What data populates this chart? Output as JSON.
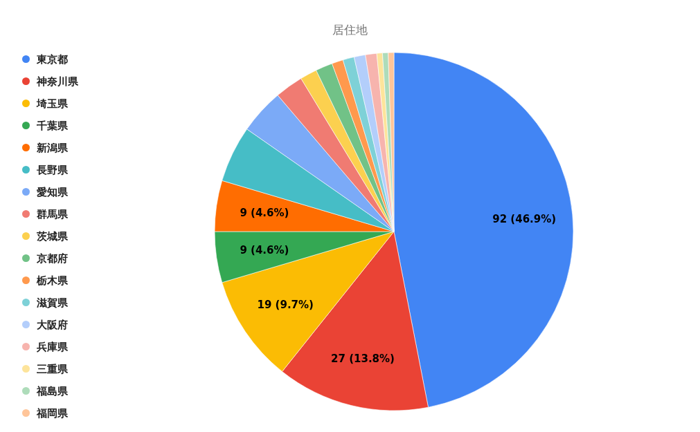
{
  "chart_data": {
    "type": "pie",
    "title": "居住地",
    "categories": [
      "東京都",
      "神奈川県",
      "埼玉県",
      "千葉県",
      "新潟県",
      "長野県",
      "愛知県",
      "群馬県",
      "茨城県",
      "京都府",
      "栃木県",
      "滋賀県",
      "大阪府",
      "兵庫県",
      "三重県",
      "福島県",
      "福岡県"
    ],
    "values": [
      92,
      27,
      19,
      9,
      9,
      10,
      8,
      5,
      3,
      3,
      2,
      2,
      2,
      2,
      1,
      1,
      1
    ],
    "colors": [
      "#4285f4",
      "#ea4335",
      "#fbbc04",
      "#34a853",
      "#ff6d01",
      "#46bdc6",
      "#7baaf7",
      "#f07b72",
      "#fcd04f",
      "#71c287",
      "#ff994d",
      "#7ed1d7",
      "#b3cefb",
      "#f7b4ae",
      "#fde49b",
      "#aedcba",
      "#ffc599"
    ],
    "value_labels": [
      "92 (46.9%)",
      "27 (13.8%)",
      "19 (9.7%)",
      "9 (4.6%)",
      "9 (4.6%)",
      null,
      null,
      null,
      null,
      null,
      null,
      null,
      null,
      null,
      null,
      null,
      null
    ],
    "legend": "left"
  }
}
